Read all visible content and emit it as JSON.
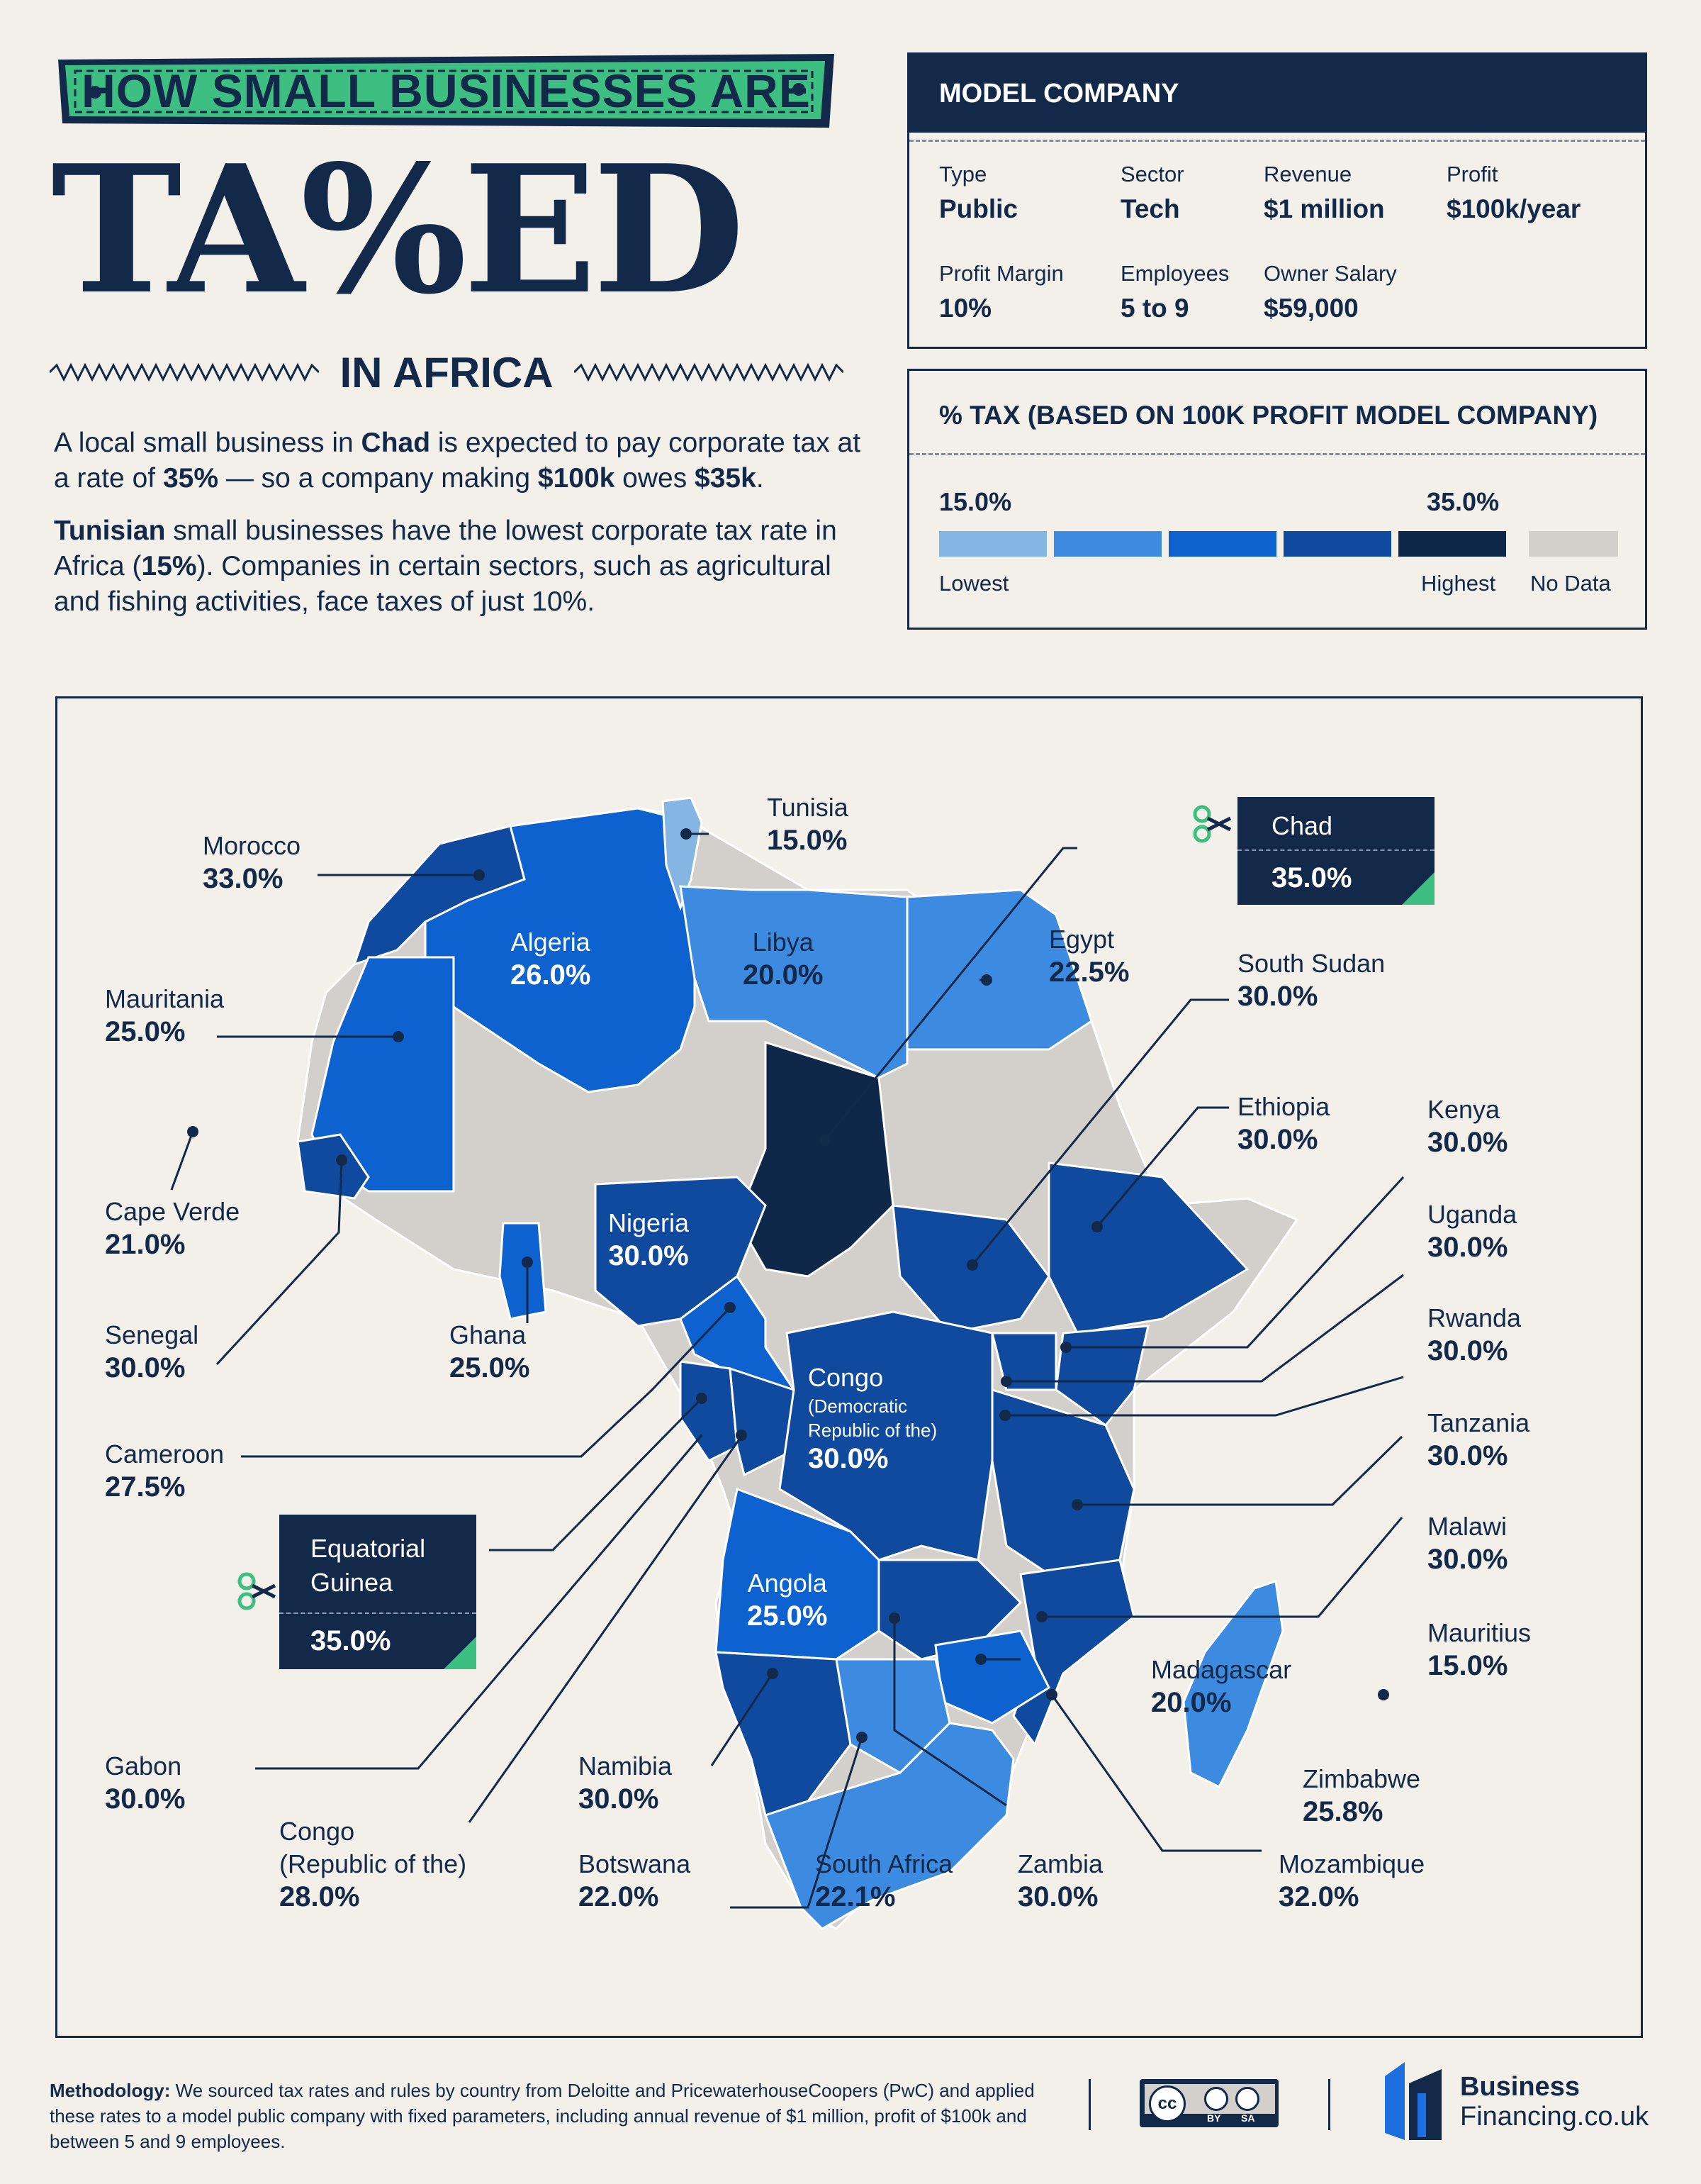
{
  "header": {
    "banner": "HOW SMALL BUSINESSES ARE",
    "title": "TA%ED",
    "subtitle": "IN AFRICA"
  },
  "intro": {
    "p1": {
      "a": "A local small business in ",
      "b": "Chad",
      "c": " is expected to pay corporate tax at a rate of ",
      "d": "35%",
      "e": " — so a company making ",
      "f": "$100k",
      "g": " owes ",
      "h": "$35k",
      "i": "."
    },
    "p2": {
      "a": "Tunisian",
      "b": " small businesses have the lowest corporate tax rate in Africa (",
      "c": "15%",
      "d": "). Companies in certain sectors, such as agricultural and fishing activities, face taxes of just 10%."
    }
  },
  "model_company": {
    "title": "MODEL COMPANY",
    "items": [
      {
        "label": "Type",
        "value": "Public"
      },
      {
        "label": "Sector",
        "value": "Tech"
      },
      {
        "label": "Revenue",
        "value": "$1 million"
      },
      {
        "label": "Profit",
        "value": "$100k/year"
      },
      {
        "label": "Profit Margin",
        "value": "10%"
      },
      {
        "label": "Employees",
        "value": "5 to 9"
      },
      {
        "label": "Owner Salary",
        "value": "$59,000"
      }
    ]
  },
  "legend": {
    "title": "% TAX (BASED ON 100K PROFIT MODEL COMPANY)",
    "min_value": "15.0%",
    "max_value": "35.0%",
    "low_label": "Lowest",
    "high_label": "Highest",
    "nodata_label": "No Data",
    "colors": [
      "#85b5e3",
      "#3d8be0",
      "#0d62cf",
      "#0f4a9e",
      "#0f2748"
    ],
    "nodata_color": "#d3cfcb"
  },
  "countries": [
    {
      "name": "Tunisia",
      "rate": "15.0%"
    },
    {
      "name": "Morocco",
      "rate": "33.0%"
    },
    {
      "name": "Algeria",
      "rate": "26.0%"
    },
    {
      "name": "Libya",
      "rate": "20.0%"
    },
    {
      "name": "Egypt",
      "rate": "22.5%"
    },
    {
      "name": "Mauritania",
      "rate": "25.0%"
    },
    {
      "name": "South Sudan",
      "rate": "30.0%"
    },
    {
      "name": "Ethiopia",
      "rate": "30.0%"
    },
    {
      "name": "Kenya",
      "rate": "30.0%"
    },
    {
      "name": "Cape Verde",
      "rate": "21.0%"
    },
    {
      "name": "Nigeria",
      "rate": "30.0%"
    },
    {
      "name": "Uganda",
      "rate": "30.0%"
    },
    {
      "name": "Senegal",
      "rate": "30.0%"
    },
    {
      "name": "Ghana",
      "rate": "25.0%"
    },
    {
      "name": "Rwanda",
      "rate": "30.0%"
    },
    {
      "name": "Congo",
      "sub1": "(Democratic",
      "sub2": "Republic of the)",
      "rate": "30.0%"
    },
    {
      "name": "Cameroon",
      "rate": "27.5%"
    },
    {
      "name": "Tanzania",
      "rate": "30.0%"
    },
    {
      "name": "Malawi",
      "rate": "30.0%"
    },
    {
      "name": "Angola",
      "rate": "25.0%"
    },
    {
      "name": "Mauritius",
      "rate": "15.0%"
    },
    {
      "name": "Madagascar",
      "rate": "20.0%"
    },
    {
      "name": "Gabon",
      "rate": "30.0%"
    },
    {
      "name": "Namibia",
      "rate": "30.0%"
    },
    {
      "name": "Zimbabwe",
      "rate": "25.8%"
    },
    {
      "name": "Congo",
      "sub1": "(Republic of the)",
      "rate": "28.0%"
    },
    {
      "name": "Botswana",
      "rate": "22.0%"
    },
    {
      "name": "South Africa",
      "rate": "22.1%"
    },
    {
      "name": "Zambia",
      "rate": "30.0%"
    },
    {
      "name": "Mozambique",
      "rate": "32.0%"
    }
  ],
  "callouts": {
    "chad": {
      "name": "Chad",
      "rate": "35.0%"
    },
    "eq_guinea": {
      "name1": "Equatorial",
      "name2": "Guinea",
      "rate": "35.0%"
    }
  },
  "footer": {
    "method_label": "Methodology:",
    "method_text": " We sourced tax rates and rules by country from Deloitte and PricewaterhouseCoopers (PwC) and applied these rates to a model public company with fixed parameters, including annual revenue of $1 million, profit of $100k and between 5 and 9 employees.",
    "cc_label": "cc",
    "cc_by": "BY",
    "cc_sa": "SA",
    "brand1": "Business",
    "brand2": "Financing.co.uk"
  }
}
